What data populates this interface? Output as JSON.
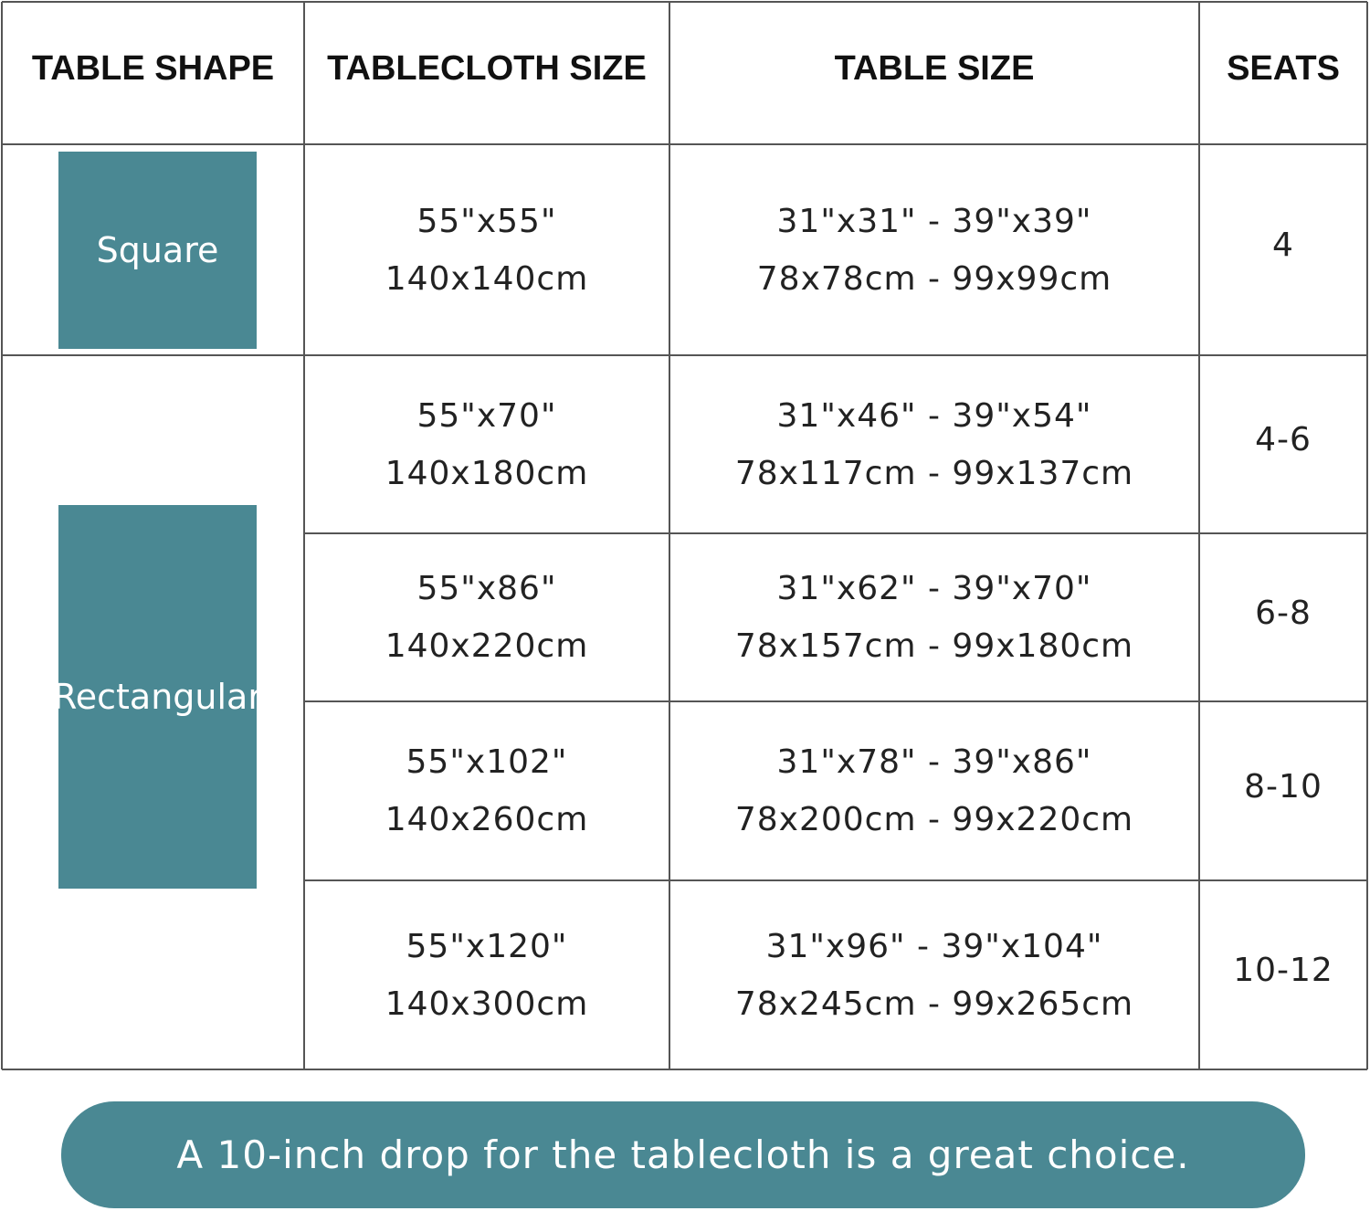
{
  "table": {
    "header": [
      "TABLE SHAPE",
      "TABLECLOTH SIZE",
      "TABLE SIZE",
      "SEATS"
    ],
    "shapes": [
      "Square",
      "Rectangular"
    ],
    "rows": [
      {
        "tablecloth": [
          "55\"x55\"",
          "140x140cm"
        ],
        "table_size": [
          "31\"x31\" - 39\"x39\"",
          "78x78cm - 99x99cm"
        ],
        "seats": "4"
      },
      {
        "tablecloth": [
          "55\"x70\"",
          "140x180cm"
        ],
        "table_size": [
          "31\"x46\" - 39\"x54\"",
          "78x117cm - 99x137cm"
        ],
        "seats": "4-6"
      },
      {
        "tablecloth": [
          "55\"x86\"",
          "140x220cm"
        ],
        "table_size": [
          "31\"x62\" - 39\"x70\"",
          "78x157cm - 99x180cm"
        ],
        "seats": "6-8"
      },
      {
        "tablecloth": [
          "55\"x102\"",
          "140x260cm"
        ],
        "table_size": [
          "31\"x78\" - 39\"x86\"",
          "78x200cm - 99x220cm"
        ],
        "seats": "8-10"
      },
      {
        "tablecloth": [
          "55\"x120\"",
          "140x300cm"
        ],
        "table_size": [
          "31\"x96\" - 39\"x104\"",
          "78x245cm - 99x265cm"
        ],
        "seats": "10-12"
      }
    ]
  },
  "note": "A 10-inch drop for the tablecloth is a great choice."
}
